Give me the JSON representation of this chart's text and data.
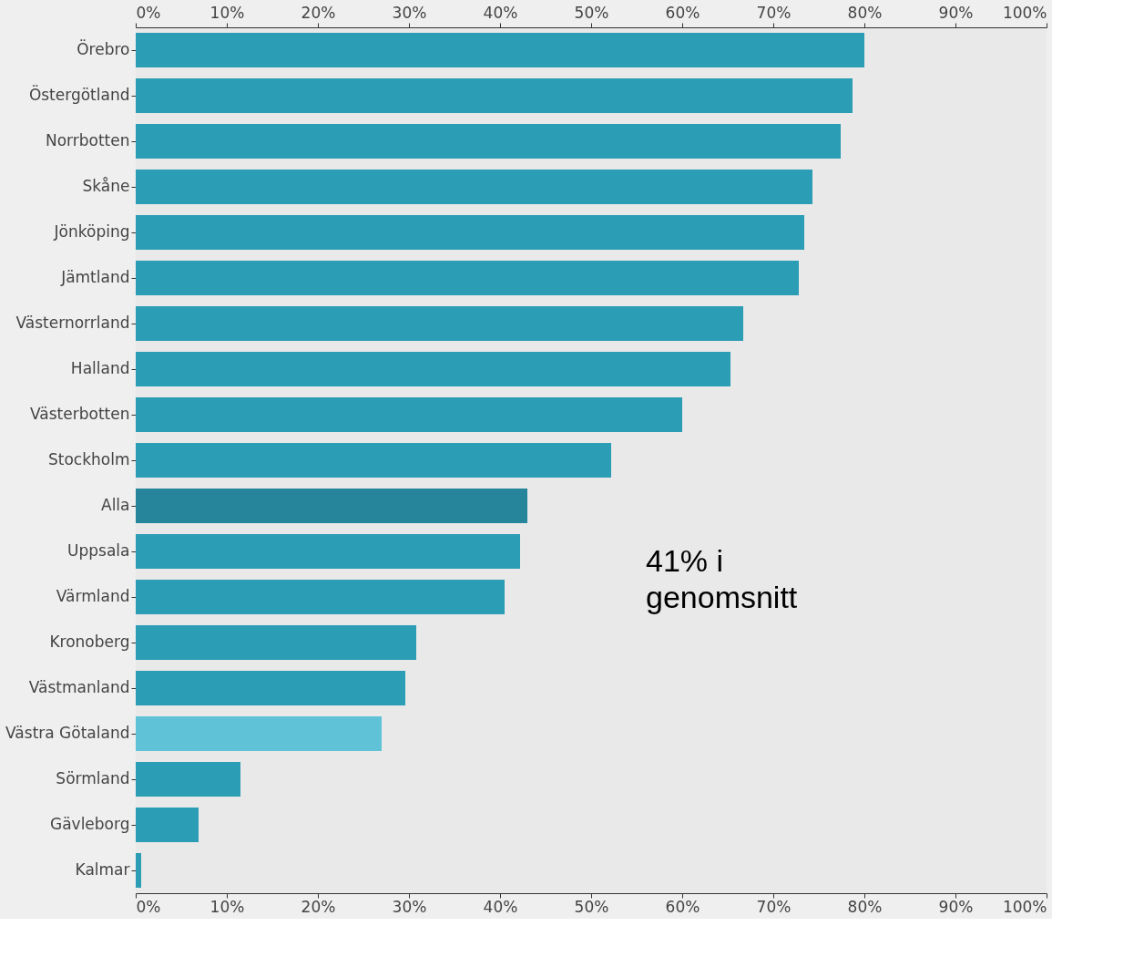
{
  "chart_data": {
    "type": "bar",
    "orientation": "horizontal",
    "categories": [
      "Örebro",
      "Östergötland",
      "Norrbotten",
      "Skåne",
      "Jönköping",
      "Jämtland",
      "Västernorrland",
      "Halland",
      "Västerbotten",
      "Stockholm",
      "Alla",
      "Uppsala",
      "Värmland",
      "Kronoberg",
      "Västmanland",
      "Västra Götaland",
      "Sörmland",
      "Gävleborg",
      "Kalmar"
    ],
    "values": [
      80.0,
      78.7,
      77.4,
      74.3,
      73.4,
      72.8,
      66.7,
      65.3,
      60.0,
      52.2,
      43.0,
      42.2,
      40.5,
      30.8,
      29.6,
      27.0,
      11.5,
      6.9,
      0.6
    ],
    "colors": [
      "#2b9db5",
      "#2b9db5",
      "#2b9db5",
      "#2b9db5",
      "#2b9db5",
      "#2b9db5",
      "#2b9db5",
      "#2b9db5",
      "#2b9db5",
      "#2b9db5",
      "#26859a",
      "#2b9db5",
      "#2b9db5",
      "#2b9db5",
      "#2b9db5",
      "#5fc2d6",
      "#2b9db5",
      "#2b9db5",
      "#2b9db5"
    ],
    "xlim": [
      0,
      100
    ],
    "xticks": [
      {
        "value": 0,
        "label": "0%"
      },
      {
        "value": 10,
        "label": "10%"
      },
      {
        "value": 20,
        "label": "20%"
      },
      {
        "value": 30,
        "label": "30%"
      },
      {
        "value": 40,
        "label": "40%"
      },
      {
        "value": 50,
        "label": "50%"
      },
      {
        "value": 60,
        "label": "60%"
      },
      {
        "value": 70,
        "label": "70%"
      },
      {
        "value": 80,
        "label": "80%"
      },
      {
        "value": 90,
        "label": "90%"
      },
      {
        "value": 100,
        "label": "100%"
      }
    ],
    "x2lim": [
      0,
      100
    ],
    "x2ticks": [
      {
        "value": 0,
        "label": "0%"
      },
      {
        "value": 10,
        "label": "10%"
      },
      {
        "value": 20,
        "label": "20%"
      },
      {
        "value": 30,
        "label": "30%"
      },
      {
        "value": 40,
        "label": "40%"
      },
      {
        "value": 50,
        "label": "50%"
      },
      {
        "value": 60,
        "label": "60%"
      },
      {
        "value": 70,
        "label": "70%"
      },
      {
        "value": 80,
        "label": "80%"
      },
      {
        "value": 90,
        "label": "90%"
      },
      {
        "value": 100,
        "label": "100%"
      }
    ],
    "annotations": [
      "41% i\ngenomsnitt"
    ]
  }
}
